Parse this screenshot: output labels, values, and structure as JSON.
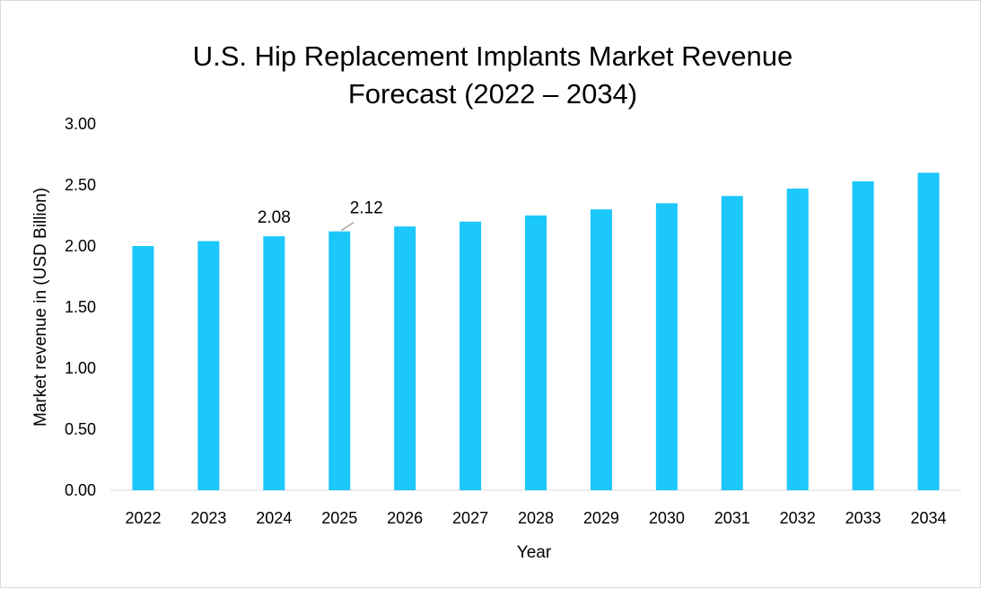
{
  "chart_data": {
    "type": "bar",
    "title_lines": [
      "U.S. Hip Replacement Implants Market Revenue",
      "Forecast (2022 – 2034)"
    ],
    "xlabel": "Year",
    "ylabel": "Market revenue in (USD Billion)",
    "ylim": [
      0,
      3
    ],
    "yticks": [
      "0.00",
      "0.50",
      "1.00",
      "1.50",
      "2.00",
      "2.50",
      "3.00"
    ],
    "grid": false,
    "categories": [
      "2022",
      "2023",
      "2024",
      "2025",
      "2026",
      "2027",
      "2028",
      "2029",
      "2030",
      "2031",
      "2032",
      "2033",
      "2034"
    ],
    "values": [
      2.0,
      2.04,
      2.08,
      2.12,
      2.16,
      2.2,
      2.25,
      2.3,
      2.35,
      2.41,
      2.47,
      2.53,
      2.6
    ],
    "data_labels": [
      {
        "category": "2024",
        "text": "2.08"
      },
      {
        "category": "2025",
        "text": "2.12"
      }
    ],
    "bar_color": "#1cc7fb"
  }
}
